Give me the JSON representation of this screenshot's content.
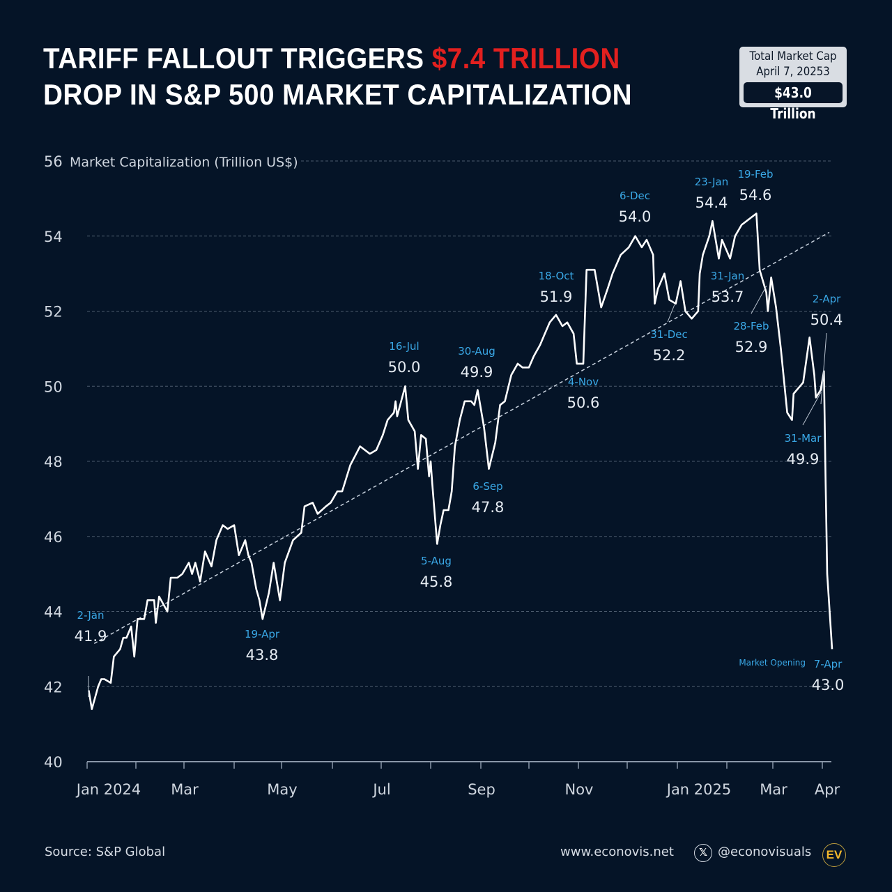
{
  "header": {
    "title_line1_prefix": "TARIFF FALLOUT TRIGGERS ",
    "title_line1_highlight": "$7.4 TRILLION",
    "title_line2": "DROP IN S&P 500 MARKET CAPITALIZATION",
    "highlight_color": "#e3201f"
  },
  "badge": {
    "line1": "Total Market Cap",
    "line2": "April 7, 20253",
    "value": "$43.0 Trillion"
  },
  "footer": {
    "source": "Source: S&P Global",
    "website": "www.econovis.net",
    "handle": "@econovisuals",
    "x_icon_glyph": "𝕏",
    "logo_text": "EV"
  },
  "chart_data": {
    "type": "line",
    "title": "Tariff Fallout Triggers $7.4 Trillion Drop in S&P 500 Market Capitalization",
    "ylabel": "Market Capitalization (Trillion US$)",
    "xlabel": "",
    "ylim": [
      40,
      56
    ],
    "yticks": [
      40,
      42,
      44,
      46,
      48,
      50,
      52,
      54,
      56
    ],
    "xticks": [
      "Jan 2024",
      "Mar",
      "May",
      "Jul",
      "Sep",
      "Nov",
      "Jan 2025",
      "Mar",
      "Apr"
    ],
    "xtick_months": [
      "2024-01",
      "2024-03",
      "2024-05",
      "2024-07",
      "2024-09",
      "2024-11",
      "2025-01",
      "2025-03",
      "2025-04"
    ],
    "grid": "horizontal-dashed",
    "line_color": "#ffffff",
    "trendline": {
      "start": {
        "date": "2024-01-02",
        "value": 43.0
      },
      "end": {
        "date": "2025-04-07",
        "value": 54.1
      },
      "style": "dashed"
    },
    "series": [
      {
        "name": "S&P 500 Market Cap",
        "points": [
          [
            "2024-01-02",
            41.9
          ],
          [
            "2024-01-04",
            41.4
          ],
          [
            "2024-01-08",
            42.0
          ],
          [
            "2024-01-10",
            42.2
          ],
          [
            "2024-01-12",
            42.2
          ],
          [
            "2024-01-16",
            42.1
          ],
          [
            "2024-01-18",
            42.8
          ],
          [
            "2024-01-22",
            43.0
          ],
          [
            "2024-01-24",
            43.3
          ],
          [
            "2024-01-26",
            43.3
          ],
          [
            "2024-01-29",
            43.6
          ],
          [
            "2024-01-31",
            42.8
          ],
          [
            "2024-02-02",
            43.8
          ],
          [
            "2024-02-06",
            43.8
          ],
          [
            "2024-02-08",
            44.3
          ],
          [
            "2024-02-12",
            44.3
          ],
          [
            "2024-02-13",
            43.7
          ],
          [
            "2024-02-15",
            44.4
          ],
          [
            "2024-02-20",
            44.0
          ],
          [
            "2024-02-22",
            44.9
          ],
          [
            "2024-02-26",
            44.9
          ],
          [
            "2024-02-29",
            45.0
          ],
          [
            "2024-03-04",
            45.3
          ],
          [
            "2024-03-06",
            45.0
          ],
          [
            "2024-03-08",
            45.3
          ],
          [
            "2024-03-11",
            44.8
          ],
          [
            "2024-03-14",
            45.6
          ],
          [
            "2024-03-18",
            45.2
          ],
          [
            "2024-03-21",
            45.9
          ],
          [
            "2024-03-25",
            46.3
          ],
          [
            "2024-03-28",
            46.2
          ],
          [
            "2024-04-01",
            46.3
          ],
          [
            "2024-04-04",
            45.5
          ],
          [
            "2024-04-08",
            45.9
          ],
          [
            "2024-04-10",
            45.5
          ],
          [
            "2024-04-12",
            45.3
          ],
          [
            "2024-04-15",
            44.6
          ],
          [
            "2024-04-17",
            44.3
          ],
          [
            "2024-04-19",
            43.8
          ],
          [
            "2024-04-23",
            44.5
          ],
          [
            "2024-04-26",
            45.3
          ],
          [
            "2024-04-30",
            44.3
          ],
          [
            "2024-05-03",
            45.3
          ],
          [
            "2024-05-08",
            45.9
          ],
          [
            "2024-05-13",
            46.1
          ],
          [
            "2024-05-15",
            46.8
          ],
          [
            "2024-05-20",
            46.9
          ],
          [
            "2024-05-23",
            46.6
          ],
          [
            "2024-05-28",
            46.8
          ],
          [
            "2024-05-31",
            46.9
          ],
          [
            "2024-06-04",
            47.2
          ],
          [
            "2024-06-07",
            47.2
          ],
          [
            "2024-06-12",
            47.9
          ],
          [
            "2024-06-18",
            48.4
          ],
          [
            "2024-06-24",
            48.2
          ],
          [
            "2024-06-28",
            48.3
          ],
          [
            "2024-07-02",
            48.7
          ],
          [
            "2024-07-05",
            49.1
          ],
          [
            "2024-07-09",
            49.3
          ],
          [
            "2024-07-10",
            49.6
          ],
          [
            "2024-07-11",
            49.2
          ],
          [
            "2024-07-16",
            50.0
          ],
          [
            "2024-07-18",
            49.1
          ],
          [
            "2024-07-22",
            48.8
          ],
          [
            "2024-07-24",
            47.8
          ],
          [
            "2024-07-26",
            48.7
          ],
          [
            "2024-07-29",
            48.6
          ],
          [
            "2024-07-31",
            47.6
          ],
          [
            "2024-08-01",
            48.0
          ],
          [
            "2024-08-02",
            47.4
          ],
          [
            "2024-08-05",
            45.8
          ],
          [
            "2024-08-07",
            46.3
          ],
          [
            "2024-08-09",
            46.7
          ],
          [
            "2024-08-12",
            46.7
          ],
          [
            "2024-08-14",
            47.2
          ],
          [
            "2024-08-16",
            48.4
          ],
          [
            "2024-08-19",
            49.1
          ],
          [
            "2024-08-22",
            49.6
          ],
          [
            "2024-08-26",
            49.6
          ],
          [
            "2024-08-28",
            49.5
          ],
          [
            "2024-08-30",
            49.9
          ],
          [
            "2024-09-03",
            48.9
          ],
          [
            "2024-09-06",
            47.8
          ],
          [
            "2024-09-10",
            48.5
          ],
          [
            "2024-09-13",
            49.5
          ],
          [
            "2024-09-16",
            49.6
          ],
          [
            "2024-09-20",
            50.3
          ],
          [
            "2024-09-24",
            50.6
          ],
          [
            "2024-09-27",
            50.5
          ],
          [
            "2024-10-01",
            50.5
          ],
          [
            "2024-10-04",
            50.8
          ],
          [
            "2024-10-08",
            51.1
          ],
          [
            "2024-10-11",
            51.4
          ],
          [
            "2024-10-14",
            51.7
          ],
          [
            "2024-10-18",
            51.9
          ],
          [
            "2024-10-22",
            51.6
          ],
          [
            "2024-10-25",
            51.7
          ],
          [
            "2024-10-29",
            51.4
          ],
          [
            "2024-10-31",
            50.6
          ],
          [
            "2024-11-04",
            50.6
          ],
          [
            "2024-11-06",
            53.1
          ],
          [
            "2024-11-11",
            53.1
          ],
          [
            "2024-11-15",
            52.1
          ],
          [
            "2024-11-19",
            52.6
          ],
          [
            "2024-11-22",
            53.0
          ],
          [
            "2024-11-27",
            53.5
          ],
          [
            "2024-12-02",
            53.7
          ],
          [
            "2024-12-06",
            54.0
          ],
          [
            "2024-12-10",
            53.7
          ],
          [
            "2024-12-13",
            53.9
          ],
          [
            "2024-12-17",
            53.5
          ],
          [
            "2024-12-18",
            52.2
          ],
          [
            "2024-12-20",
            52.6
          ],
          [
            "2024-12-24",
            53.0
          ],
          [
            "2024-12-27",
            52.3
          ],
          [
            "2024-12-31",
            52.2
          ],
          [
            "2025-01-03",
            52.8
          ],
          [
            "2025-01-06",
            52.0
          ],
          [
            "2025-01-10",
            51.8
          ],
          [
            "2025-01-14",
            52.0
          ],
          [
            "2025-01-15",
            53.0
          ],
          [
            "2025-01-17",
            53.5
          ],
          [
            "2025-01-21",
            54.0
          ],
          [
            "2025-01-23",
            54.4
          ],
          [
            "2025-01-27",
            53.4
          ],
          [
            "2025-01-29",
            53.9
          ],
          [
            "2025-01-31",
            53.7
          ],
          [
            "2025-02-03",
            53.4
          ],
          [
            "2025-02-06",
            54.0
          ],
          [
            "2025-02-10",
            54.3
          ],
          [
            "2025-02-13",
            54.4
          ],
          [
            "2025-02-19",
            54.6
          ],
          [
            "2025-02-21",
            53.1
          ],
          [
            "2025-02-25",
            52.5
          ],
          [
            "2025-02-26",
            52.0
          ],
          [
            "2025-02-28",
            52.9
          ],
          [
            "2025-03-03",
            52.1
          ],
          [
            "2025-03-06",
            51.0
          ],
          [
            "2025-03-10",
            49.3
          ],
          [
            "2025-03-13",
            49.1
          ],
          [
            "2025-03-14",
            49.8
          ],
          [
            "2025-03-18",
            50.0
          ],
          [
            "2025-03-20",
            50.1
          ],
          [
            "2025-03-24",
            51.3
          ],
          [
            "2025-03-27",
            50.3
          ],
          [
            "2025-03-28",
            49.7
          ],
          [
            "2025-03-31",
            49.9
          ],
          [
            "2025-04-02",
            50.4
          ],
          [
            "2025-04-03",
            47.5
          ],
          [
            "2025-04-04",
            45.0
          ],
          [
            "2025-04-07",
            43.0
          ]
        ]
      }
    ],
    "annotations": [
      {
        "date_label": "2-Jan",
        "value_label": "41.9",
        "date": "2024-01-02",
        "value": 41.9
      },
      {
        "date_label": "19-Apr",
        "value_label": "43.8",
        "date": "2024-04-19",
        "value": 43.8
      },
      {
        "date_label": "16-Jul",
        "value_label": "50.0",
        "date": "2024-07-16",
        "value": 50.0
      },
      {
        "date_label": "5-Aug",
        "value_label": "45.8",
        "date": "2024-08-05",
        "value": 45.8
      },
      {
        "date_label": "30-Aug",
        "value_label": "49.9",
        "date": "2024-08-30",
        "value": 49.9
      },
      {
        "date_label": "6-Sep",
        "value_label": "47.8",
        "date": "2024-09-06",
        "value": 47.8
      },
      {
        "date_label": "18-Oct",
        "value_label": "51.9",
        "date": "2024-10-18",
        "value": 51.9
      },
      {
        "date_label": "4-Nov",
        "value_label": "50.6",
        "date": "2024-11-04",
        "value": 50.6
      },
      {
        "date_label": "6-Dec",
        "value_label": "54.0",
        "date": "2024-12-06",
        "value": 54.0
      },
      {
        "date_label": "31-Dec",
        "value_label": "52.2",
        "date": "2024-12-31",
        "value": 52.2
      },
      {
        "date_label": "23-Jan",
        "value_label": "54.4",
        "date": "2025-01-23",
        "value": 54.4
      },
      {
        "date_label": "31-Jan",
        "value_label": "53.7",
        "date": "2025-01-31",
        "value": 53.7
      },
      {
        "date_label": "19-Feb",
        "value_label": "54.6",
        "date": "2025-02-19",
        "value": 54.6
      },
      {
        "date_label": "28-Feb",
        "value_label": "52.9",
        "date": "2025-02-28",
        "value": 52.9
      },
      {
        "date_label": "31-Mar",
        "value_label": "49.9",
        "date": "2025-03-31",
        "value": 49.9
      },
      {
        "date_label": "2-Apr",
        "value_label": "50.4",
        "date": "2025-04-02",
        "value": 50.4
      },
      {
        "date_label": "7-Apr",
        "value_label": "43.0",
        "date": "2025-04-07",
        "value": 43.0,
        "note": "Market Opening"
      }
    ]
  }
}
